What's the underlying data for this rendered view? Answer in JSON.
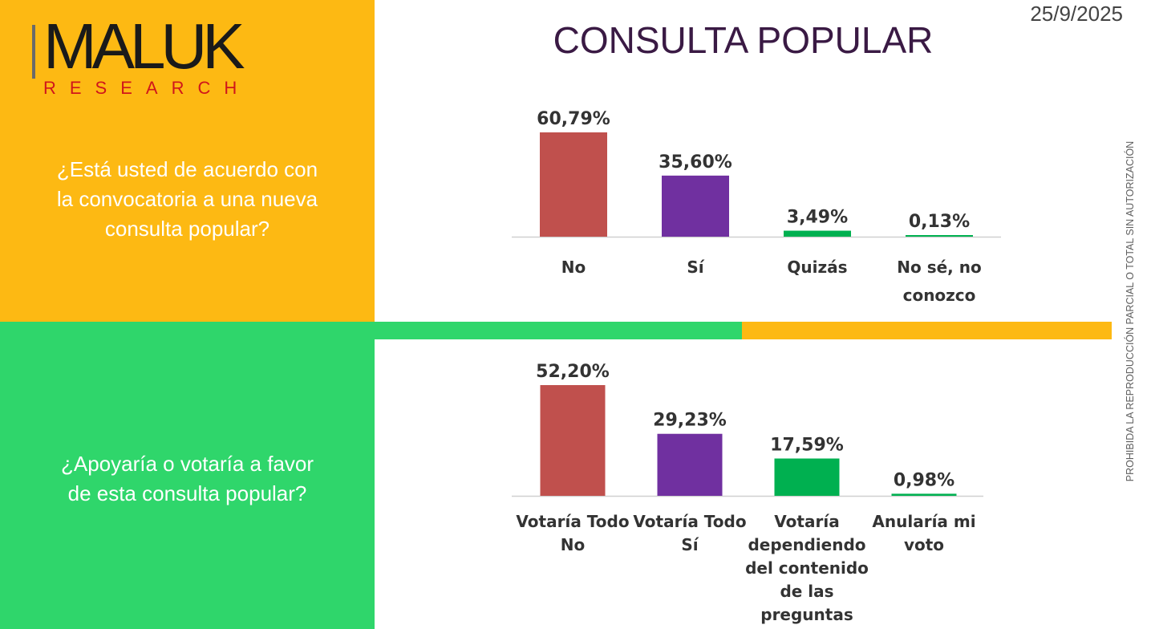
{
  "brand": {
    "name": "MALUK",
    "subtitle": "RESEARCH"
  },
  "title": "CONSULTA POPULAR",
  "date": "25/9/2025",
  "side_note": "PROHIBIDA LA REPRODUCCIÓN PARCIAL O TOTAL SIN AUTORIZACIÓN",
  "colors": {
    "panel_top": "#fdb913",
    "panel_bottom": "#2fd66b",
    "red": "#c0504d",
    "purple": "#7030a0",
    "green": "#00b050",
    "axis": "#d0d0d0"
  },
  "questions": [
    "¿Está usted de acuerdo con\nla convocatoria a una nueva\nconsulta popular?",
    "¿Apoyaría o votaría a favor\nde esta consulta popular?"
  ],
  "chart_data": [
    {
      "type": "bar",
      "categories": [
        [
          "No"
        ],
        [
          "Sí"
        ],
        [
          "Quizás"
        ],
        [
          "No sé, no",
          "conozco"
        ]
      ],
      "values": [
        60.79,
        35.6,
        3.49,
        0.13
      ],
      "labels": [
        "60,79%",
        "35,60%",
        "3,49%",
        "0,13%"
      ],
      "colors": [
        "#c0504d",
        "#7030a0",
        "#00b050",
        "#00b050"
      ],
      "ylim": [
        0,
        60.79
      ]
    },
    {
      "type": "bar",
      "categories": [
        [
          "Votaría Todo",
          "No"
        ],
        [
          "Votaría Todo",
          "Sí"
        ],
        [
          "Votaría",
          "dependiendo",
          "del contenido",
          "de las",
          "preguntas"
        ],
        [
          "Anularía mi",
          "voto"
        ]
      ],
      "values": [
        52.2,
        29.23,
        17.59,
        0.98
      ],
      "labels": [
        "52,20%",
        "29,23%",
        "17,59%",
        "0,98%"
      ],
      "colors": [
        "#c0504d",
        "#7030a0",
        "#00b050",
        "#00b050"
      ],
      "ylim": [
        0,
        52.2
      ]
    }
  ]
}
